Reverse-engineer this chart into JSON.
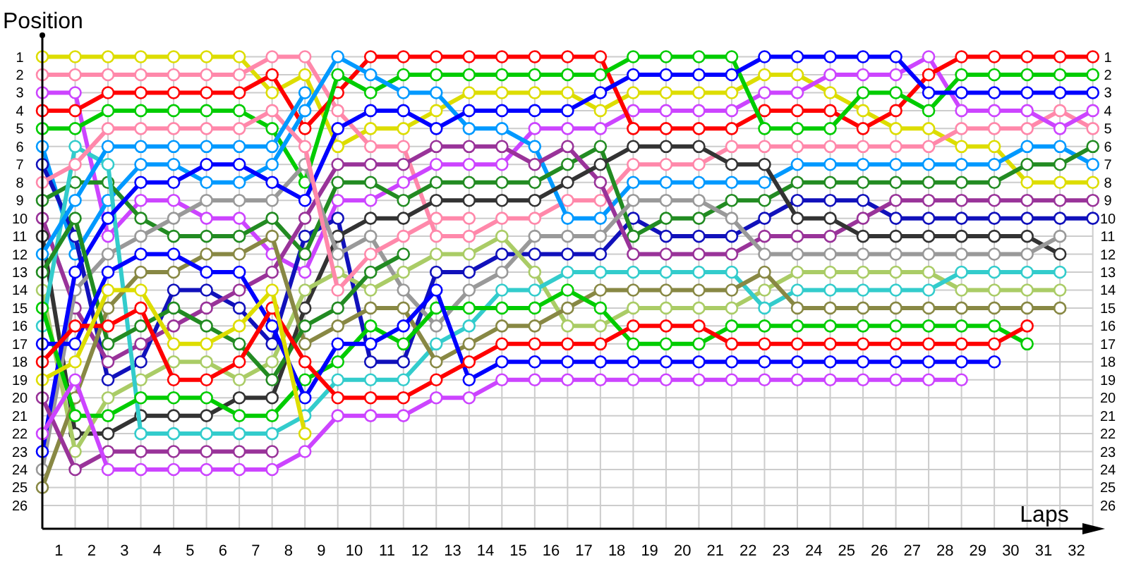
{
  "chart_data": {
    "type": "line",
    "xlabel": "Laps",
    "ylabel": "Position",
    "x": [
      0,
      1,
      2,
      3,
      4,
      5,
      6,
      7,
      8,
      9,
      10,
      11,
      12,
      13,
      14,
      15,
      16,
      17,
      18,
      19,
      20,
      21,
      22,
      23,
      24,
      25,
      26,
      27,
      28,
      29,
      30,
      31,
      32
    ],
    "xlim": [
      0,
      32.2
    ],
    "xticks": [
      {
        "value": 0.5,
        "label": "1"
      },
      {
        "value": 1.5,
        "label": "2"
      },
      {
        "value": 2.5,
        "label": "3"
      },
      {
        "value": 3.5,
        "label": "4"
      },
      {
        "value": 4.5,
        "label": "5"
      },
      {
        "value": 5.5,
        "label": "6"
      },
      {
        "value": 6.5,
        "label": "7"
      },
      {
        "value": 7.5,
        "label": "8"
      },
      {
        "value": 8.5,
        "label": "9"
      },
      {
        "value": 9.5,
        "label": "10"
      },
      {
        "value": 10.5,
        "label": "11"
      },
      {
        "value": 11.5,
        "label": "12"
      },
      {
        "value": 12.5,
        "label": "13"
      },
      {
        "value": 13.5,
        "label": "14"
      },
      {
        "value": 14.5,
        "label": "15"
      },
      {
        "value": 15.5,
        "label": "16"
      },
      {
        "value": 16.5,
        "label": "17"
      },
      {
        "value": 17.5,
        "label": "18"
      },
      {
        "value": 18.5,
        "label": "19"
      },
      {
        "value": 19.5,
        "label": "20"
      },
      {
        "value": 20.5,
        "label": "21"
      },
      {
        "value": 21.5,
        "label": "22"
      },
      {
        "value": 22.5,
        "label": "23"
      },
      {
        "value": 23.5,
        "label": "24"
      },
      {
        "value": 24.5,
        "label": "25"
      },
      {
        "value": 25.5,
        "label": "26"
      },
      {
        "value": 26.5,
        "label": "27"
      },
      {
        "value": 27.5,
        "label": "28"
      },
      {
        "value": 28.5,
        "label": "29"
      },
      {
        "value": 29.5,
        "label": "30"
      },
      {
        "value": 30.5,
        "label": "31"
      },
      {
        "value": 31.5,
        "label": "32"
      }
    ],
    "ylim": [
      27.3,
      -0.2
    ],
    "yticks": [
      1,
      2,
      3,
      4,
      5,
      6,
      7,
      8,
      9,
      10,
      11,
      12,
      13,
      14,
      15,
      16,
      17,
      18,
      19,
      20,
      21,
      22,
      23,
      24,
      25,
      26
    ],
    "y2lim": [
      27.3,
      -0.2
    ],
    "y2ticks": [
      1,
      2,
      3,
      4,
      5,
      6,
      7,
      8,
      9,
      10,
      11,
      12,
      13,
      14,
      15,
      16,
      17,
      18,
      19,
      20,
      21,
      22,
      23,
      24,
      25,
      26
    ],
    "grid": true,
    "marker": "circle",
    "line_style": "solid",
    "series": [
      {
        "color": "#dddd00",
        "values": [
          1,
          1,
          1,
          1,
          1,
          1,
          1,
          3,
          2,
          6,
          5,
          5,
          4,
          3,
          3,
          3,
          3,
          4,
          3,
          3,
          3,
          3,
          2,
          2,
          3,
          4,
          5,
          5,
          6,
          6,
          8,
          8,
          8
        ]
      },
      {
        "color": "#ff88aa",
        "values": [
          2,
          2,
          2,
          2,
          2,
          2,
          2,
          1,
          1,
          4,
          6,
          6,
          11,
          11,
          10,
          10,
          9,
          9,
          7,
          7,
          7,
          6,
          6,
          6,
          6,
          6,
          6,
          6,
          5,
          5,
          5,
          4,
          5
        ]
      },
      {
        "color": "#cc44ff",
        "values": [
          3,
          3,
          11,
          9,
          9,
          10,
          10,
          12,
          13,
          9,
          9,
          8,
          7,
          7,
          7,
          5,
          5,
          5,
          4,
          4,
          4,
          4,
          3,
          3,
          2,
          2,
          2,
          1,
          4,
          4,
          4,
          5,
          4
        ]
      },
      {
        "color": "#ff0000",
        "values": [
          4,
          4,
          3,
          3,
          3,
          3,
          3,
          2,
          5,
          3,
          1,
          1,
          1,
          1,
          1,
          1,
          1,
          1,
          5,
          5,
          5,
          5,
          4,
          4,
          4,
          5,
          4,
          2,
          1,
          1,
          1,
          1,
          1
        ]
      },
      {
        "color": "#00cc00",
        "values": [
          5,
          5,
          4,
          4,
          4,
          4,
          4,
          5,
          8,
          2,
          3,
          2,
          2,
          2,
          2,
          2,
          2,
          2,
          1,
          1,
          1,
          1,
          5,
          5,
          5,
          3,
          3,
          4,
          2,
          2,
          2,
          2,
          2
        ]
      },
      {
        "color": "#0099ff",
        "values": [
          6,
          12,
          9,
          7,
          7,
          8,
          8,
          7,
          4,
          1,
          2,
          3,
          3,
          5,
          5,
          6,
          10,
          10,
          8,
          8,
          8,
          8,
          8,
          7,
          7,
          7,
          7,
          7,
          7,
          7,
          6,
          6,
          7
        ]
      },
      {
        "color": "#1111bb",
        "values": [
          7,
          11,
          19,
          18,
          14,
          14,
          15,
          17,
          11,
          10,
          18,
          18,
          13,
          13,
          12,
          12,
          12,
          12,
          10,
          11,
          11,
          11,
          10,
          9,
          9,
          9,
          10,
          10,
          10,
          10,
          10,
          10,
          10
        ]
      },
      {
        "color": "#228b22",
        "values": [
          9,
          8,
          8,
          10,
          11,
          11,
          11,
          10,
          12,
          8,
          8,
          9,
          8,
          8,
          8,
          8,
          7,
          6,
          11,
          10,
          10,
          9,
          9,
          8,
          8,
          8,
          8,
          8,
          8,
          8,
          7,
          7,
          6
        ]
      },
      {
        "color": "#993399",
        "values": [
          10,
          15,
          18,
          17,
          16,
          15,
          14,
          13,
          10,
          7,
          7,
          7,
          6,
          6,
          6,
          7,
          6,
          8,
          12,
          12,
          12,
          12,
          11,
          11,
          11,
          10,
          9,
          9,
          9,
          9,
          9,
          9,
          9
        ]
      },
      {
        "color": "#333333",
        "values": [
          11,
          22,
          22,
          21,
          21,
          21,
          20,
          20,
          15,
          11,
          10,
          10,
          9,
          9,
          9,
          9,
          8,
          7,
          6,
          6,
          6,
          7,
          7,
          10,
          10,
          11,
          11,
          11,
          11,
          11,
          11,
          12,
          null
        ]
      },
      {
        "color": "#999999",
        "values": [
          24,
          14,
          12,
          11,
          10,
          9,
          9,
          9,
          7,
          12,
          11,
          14,
          16,
          14,
          13,
          11,
          11,
          11,
          9,
          9,
          9,
          10,
          12,
          12,
          12,
          12,
          12,
          12,
          12,
          12,
          12,
          11,
          null
        ]
      },
      {
        "color": "#aacc66",
        "values": [
          14,
          23,
          20,
          19,
          18,
          18,
          19,
          18,
          14,
          13,
          14,
          13,
          12,
          12,
          11,
          13,
          16,
          16,
          15,
          15,
          15,
          15,
          14,
          13,
          13,
          13,
          13,
          13,
          14,
          14,
          14,
          14,
          null
        ]
      },
      {
        "color": "#33cccc",
        "values": [
          16,
          6,
          7,
          22,
          22,
          22,
          22,
          22,
          21,
          19,
          19,
          19,
          17,
          16,
          14,
          14,
          13,
          13,
          13,
          13,
          13,
          13,
          15,
          14,
          14,
          14,
          14,
          14,
          13,
          13,
          13,
          13,
          null
        ]
      },
      {
        "color": "#0000ff",
        "values": [
          23,
          13,
          10,
          8,
          8,
          7,
          7,
          8,
          9,
          5,
          4,
          4,
          5,
          4,
          4,
          4,
          4,
          3,
          2,
          2,
          2,
          2,
          1,
          1,
          1,
          1,
          1,
          3,
          3,
          3,
          3,
          3,
          3
        ]
      },
      {
        "color": "#888844",
        "values": [
          25,
          20,
          15,
          13,
          13,
          12,
          12,
          11,
          17,
          16,
          15,
          15,
          18,
          17,
          16,
          16,
          15,
          14,
          14,
          14,
          14,
          14,
          13,
          15,
          15,
          15,
          15,
          15,
          15,
          15,
          15,
          15,
          null
        ]
      },
      {
        "color": "#ff88aa",
        "values": [
          8,
          7,
          5,
          5,
          5,
          5,
          5,
          4,
          6,
          14,
          12,
          11,
          10,
          10,
          null,
          null,
          null,
          null,
          null,
          null,
          null,
          null,
          null,
          null,
          null,
          null,
          null,
          null,
          null,
          null,
          null,
          null,
          null
        ]
      },
      {
        "color": "#0099ff",
        "values": [
          12,
          9,
          6,
          6,
          6,
          6,
          6,
          6,
          3,
          null,
          null,
          null,
          null,
          null,
          null,
          null,
          null,
          null,
          null,
          null,
          null,
          null,
          null,
          null,
          null,
          null,
          null,
          null,
          null,
          null,
          null,
          null,
          null
        ]
      },
      {
        "color": "#228b22",
        "values": [
          13,
          10,
          17,
          16,
          15,
          16,
          17,
          19,
          16,
          15,
          13,
          12,
          null,
          null,
          null,
          null,
          null,
          null,
          null,
          null,
          null,
          null,
          null,
          null,
          null,
          null,
          null,
          null,
          null,
          null,
          null,
          null,
          null
        ]
      },
      {
        "color": "#00cc00",
        "values": [
          15,
          21,
          21,
          20,
          20,
          20,
          21,
          21,
          19,
          18,
          16,
          17,
          15,
          15,
          15,
          15,
          14,
          15,
          17,
          17,
          17,
          16,
          16,
          16,
          16,
          16,
          16,
          16,
          16,
          16,
          17,
          null,
          null
        ]
      },
      {
        "color": "#0000ff",
        "values": [
          17,
          17,
          13,
          12,
          12,
          13,
          13,
          16,
          20,
          17,
          17,
          16,
          14,
          19,
          18,
          18,
          18,
          18,
          18,
          18,
          18,
          18,
          18,
          18,
          18,
          18,
          18,
          18,
          18,
          18,
          null,
          null,
          null
        ]
      },
      {
        "color": "#ff0000",
        "values": [
          18,
          16,
          16,
          15,
          19,
          19,
          18,
          15,
          18,
          20,
          20,
          20,
          19,
          18,
          17,
          17,
          17,
          17,
          16,
          16,
          16,
          17,
          17,
          17,
          17,
          17,
          17,
          17,
          17,
          17,
          16,
          null,
          null
        ]
      },
      {
        "color": "#dddd00",
        "values": [
          19,
          18,
          14,
          14,
          17,
          17,
          16,
          14,
          22,
          null,
          null,
          null,
          null,
          null,
          null,
          null,
          null,
          null,
          null,
          null,
          null,
          null,
          null,
          null,
          null,
          null,
          null,
          null,
          null,
          null,
          null,
          null,
          null
        ]
      },
      {
        "color": "#993399",
        "values": [
          20,
          24,
          23,
          23,
          23,
          23,
          23,
          23,
          null,
          null,
          null,
          null,
          null,
          null,
          null,
          null,
          null,
          null,
          null,
          null,
          null,
          null,
          null,
          null,
          null,
          null,
          null,
          null,
          null,
          null,
          null,
          null,
          null
        ]
      },
      {
        "color": "#cc44ff",
        "values": [
          22,
          19,
          24,
          24,
          24,
          24,
          24,
          24,
          23,
          21,
          21,
          21,
          20,
          20,
          19,
          19,
          19,
          19,
          19,
          19,
          19,
          19,
          19,
          19,
          19,
          19,
          19,
          19,
          19,
          null,
          null,
          null,
          null
        ]
      }
    ]
  }
}
